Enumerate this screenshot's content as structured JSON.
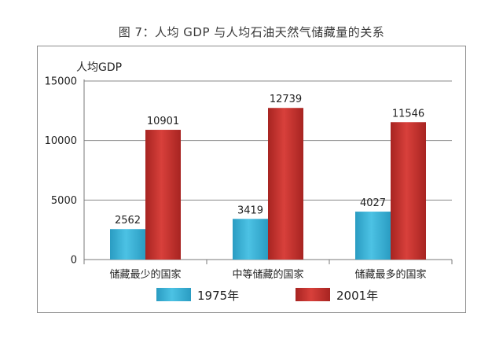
{
  "chart_data": {
    "type": "bar",
    "title": "图 7：人均 GDP 与人均石油天然气储藏量的关系",
    "ylabel": "人均GDP",
    "xlabel": "",
    "categories": [
      "储藏最少的国家",
      "中等储藏的国家",
      "储藏最多的国家"
    ],
    "series": [
      {
        "name": "1975年",
        "values": [
          2562,
          3419,
          4027
        ],
        "color": "#3bb3d6"
      },
      {
        "name": "2001年",
        "values": [
          10901,
          12739,
          11546
        ],
        "color": "#c8312f"
      }
    ],
    "ylim": [
      0,
      15000
    ],
    "yticks": [
      "0",
      "5000",
      "10000",
      "15000"
    ],
    "grid": true,
    "legend_position": "bottom"
  }
}
